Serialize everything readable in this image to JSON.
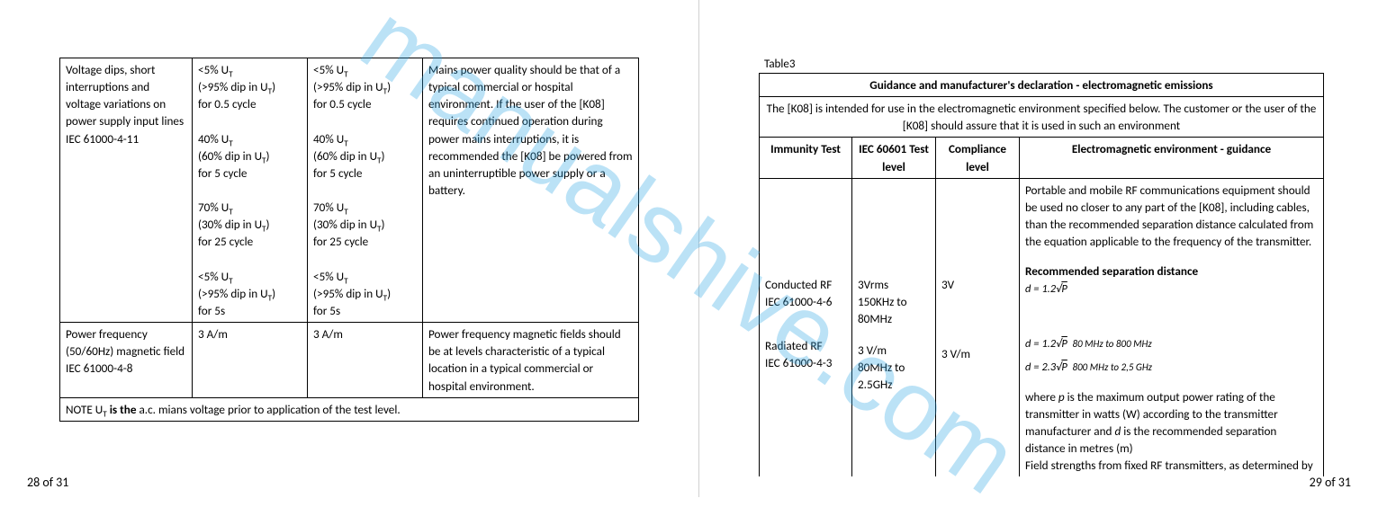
{
  "watermark": "manualshive.com",
  "left_page": {
    "pagenum": "28 of 31",
    "rows": [
      {
        "c0": "Voltage dips, short interruptions and voltage variations on power supply input lines\nIEC 61000-4-11",
        "c1": "<5% U<sub>T</sub>\n(>95% dip in U<sub>T</sub>)\nfor 0.5 cycle\n\n40% U<sub>T</sub>\n(60% dip in U<sub>T</sub>)\nfor 5 cycle\n\n70% U<sub>T</sub>\n(30% dip in U<sub>T</sub>)\nfor 25 cycle\n\n<5% U<sub>T</sub>\n(>95% dip in U<sub>T</sub>)\nfor 5s",
        "c2": "<5% U<sub>T</sub>\n(>95% dip in U<sub>T</sub>)\nfor 0.5 cycle\n\n40% U<sub>T</sub>\n(60% dip in U<sub>T</sub>)\nfor 5 cycle\n\n70% U<sub>T</sub>\n(30% dip in U<sub>T</sub>)\nfor 25 cycle\n\n<5% U<sub>T</sub>\n(>95% dip in U<sub>T</sub>)\nfor 5s",
        "c3": "Mains power quality should be that of a typical commercial or hospital environment. If the user of the [K08] requires continued operation during power mains interruptions, it is recommended the [K08] be powered from an uninterruptible power supply or a battery."
      },
      {
        "c0": "Power frequency (50/60Hz) magnetic field\nIEC 61000-4-8",
        "c1": "3 A/m",
        "c2": "3 A/m",
        "c3": "Power frequency magnetic fields should be at levels characteristic of a typical location in a typical commercial or hospital environment."
      }
    ],
    "note": "NOTE U<sub>T</sub> <b>is the</b> a.c. mians voltage prior to application of the test level."
  },
  "right_page": {
    "pagenum": "29 of 31",
    "table_label": "Table3",
    "header1": "Guidance and manufacturer's declaration - electromagnetic emissions",
    "header2": "The [K08] is intended for use in the electromagnetic environment specified below. The customer or the user of the [K08] should assure that it is used in such an environment",
    "cols": [
      "Immunity Test",
      "IEC 60601 Test level",
      "Compliance level",
      "Electromagnetic environment - guidance"
    ],
    "guidance_top": "Portable and mobile RF communications equipment should be used no closer to any part of the [K08], including cables, than the recommended separation distance calculated from the equation applicable to the frequency of the transmitter.",
    "rec_sep": "Recommended separation distance",
    "eq1": "d = 1.2√P",
    "eq2": "d = 1.2√P",
    "eq2_range": "80 MHz to 800 MHz",
    "eq3": "d = 2.3√P",
    "eq3_range": "800 MHz to 2,5 GHz",
    "guidance_bottom": "where <i>p</i> is the maximum output power rating of the transmitter in watts (W) according to the transmitter manufacturer and <i>d</i> is the recommended separation distance in metres (m)\nField strengths from fixed RF transmitters, as determined by",
    "cond_test": "Conducted RF\nIEC 61000-4-6",
    "cond_level": "3Vrms\n150KHz to 80MHz",
    "cond_comp": "3V",
    "rad_test": "Radiated RF\nIEC 61000-4-3",
    "rad_level": "3 V/m\n80MHz to 2.5GHz",
    "rad_comp": "3 V/m"
  },
  "colors": {
    "text": "#000000",
    "border": "#000000",
    "watermark": "#2fa6e6",
    "divider": "#d0d0d0",
    "bg": "#ffffff"
  }
}
